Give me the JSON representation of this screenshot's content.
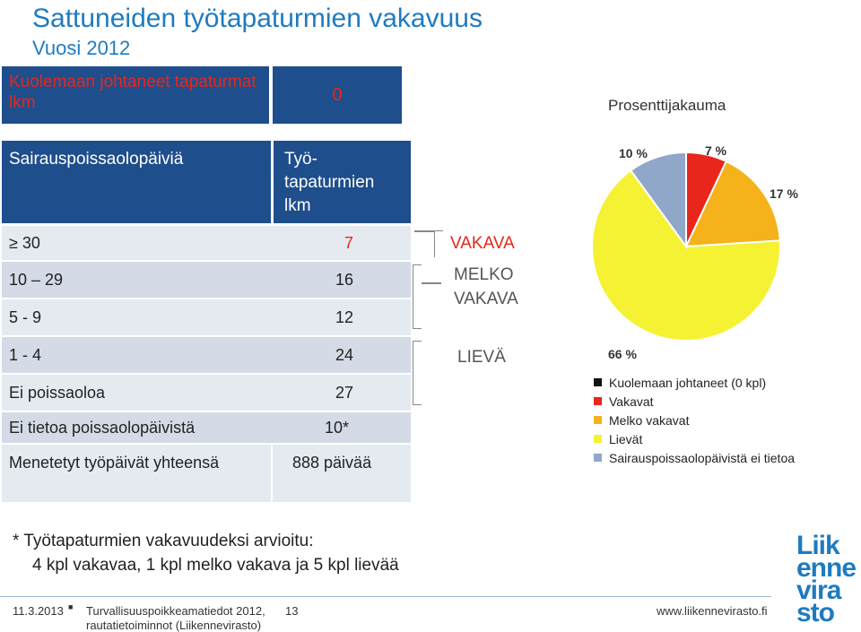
{
  "title": "Sattuneiden työtapaturmien vakavuus",
  "subtitle": "Vuosi 2012",
  "table": {
    "fatal_label": "Kuolemaan johtaneet tapaturmat lkm",
    "fatal_value": "0",
    "col_sick_days": "Sairauspoissaolopäiviä",
    "col_count": "Työ-tapaturmien lkm",
    "rows": [
      {
        "label": "≥ 30",
        "value": "7"
      },
      {
        "label": "10 – 29",
        "value": "16"
      },
      {
        "label": "5 - 9",
        "value": "12"
      },
      {
        "label": "1 - 4",
        "value": "24"
      },
      {
        "label": "Ei poissaoloa",
        "value": "27"
      },
      {
        "label": "Ei tietoa poissaolopäivistä",
        "value": "10*"
      },
      {
        "label": "Menetetyt työpäivät yhteensä",
        "value": "888 päivää"
      }
    ]
  },
  "severity": {
    "vakava": "VAKAVA",
    "melko_vakava_1": "MELKO",
    "melko_vakava_2": "VAKAVA",
    "lieva": "LIEVÄ"
  },
  "chart_data": {
    "type": "pie",
    "title": "Prosenttijakauma",
    "labels": [
      "Kuolemaan johtaneet (0 kpl)",
      "Vakavat",
      "Melko vakavat",
      "Lievät",
      "Sairauspoissaolopäivistä ei tietoa"
    ],
    "values": [
      0,
      7,
      17,
      66,
      10
    ],
    "value_labels": [
      "",
      "7 %",
      "17 %",
      "66 %",
      "10 %"
    ],
    "colors": [
      "#111111",
      "#e8261b",
      "#f5b21a",
      "#f5f233",
      "#91a7c9"
    ],
    "legend": "bottom"
  },
  "note": {
    "line1": "* Työtapaturmien vakavuudeksi arvioitu:",
    "line2": "4 kpl vakavaa, 1 kpl melko vakava ja 5 kpl lievää"
  },
  "footer": {
    "date": "11.3.2013",
    "source1": "Turvallisuuspoikkeamatiedot 2012,",
    "source2": "rautatietoiminnot (Liikennevirasto)",
    "page": "13",
    "url": "www.liikennevirasto.fi"
  },
  "logo": [
    "Liik",
    "enne",
    "vira",
    "sto"
  ]
}
